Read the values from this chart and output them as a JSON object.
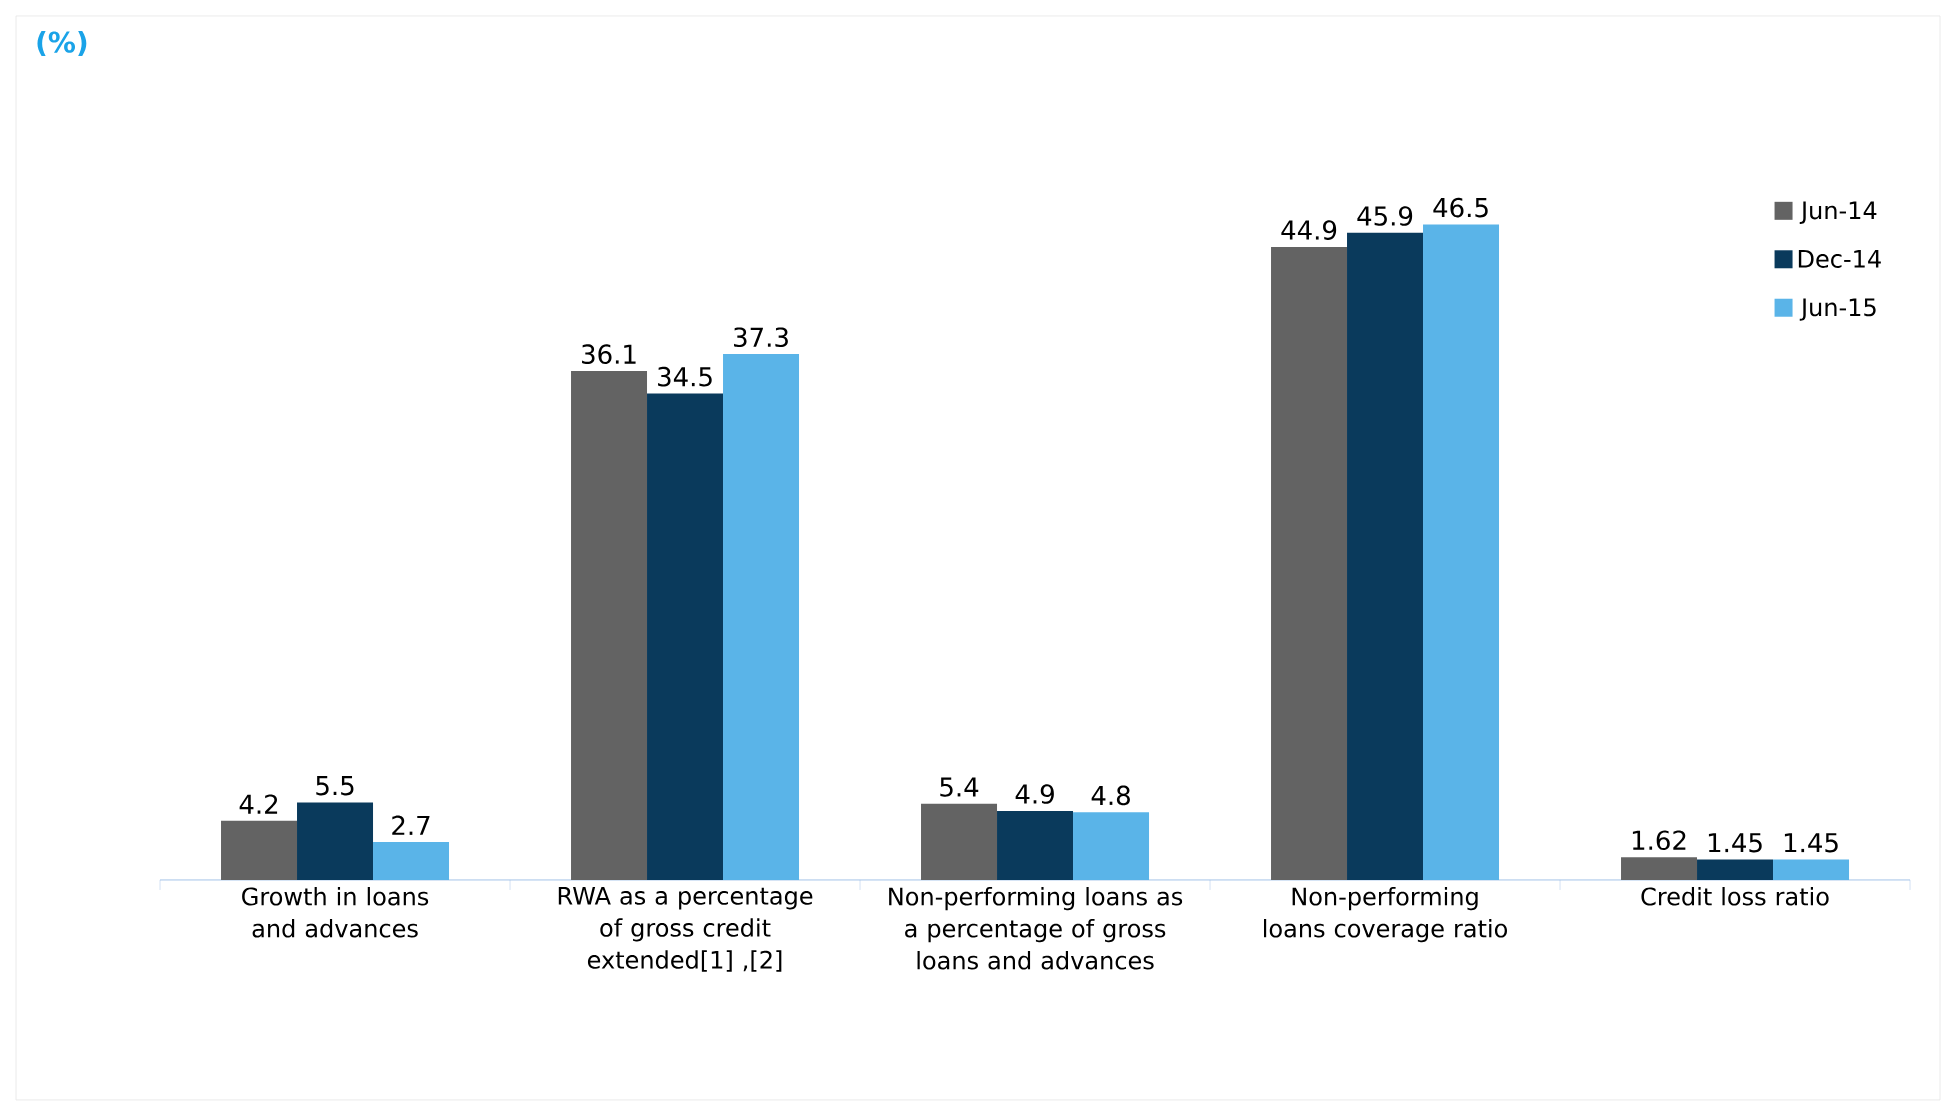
{
  "chart_data": {
    "type": "bar",
    "annotations": [
      "(%)"
    ],
    "categories": [
      "Growth in loans and advances",
      "RWA as a percentage of gross credit extended[1] ,[2]",
      "Non-performing loans as a percentage of gross loans and advances",
      "Non-performing loans coverage ratio",
      "Credit loss ratio"
    ],
    "series": [
      {
        "name": "Jun-14",
        "color": "#636363",
        "values": [
          4.2,
          36.1,
          5.4,
          44.9,
          1.62
        ]
      },
      {
        "name": "Dec-14",
        "color": "#0a3a5c",
        "values": [
          5.5,
          34.5,
          4.9,
          45.9,
          1.45
        ]
      },
      {
        "name": "Jun-15",
        "color": "#5ab4e8",
        "values": [
          2.7,
          37.3,
          4.8,
          46.5,
          1.45
        ]
      }
    ],
    "data_labels": true,
    "legend": "top right"
  }
}
